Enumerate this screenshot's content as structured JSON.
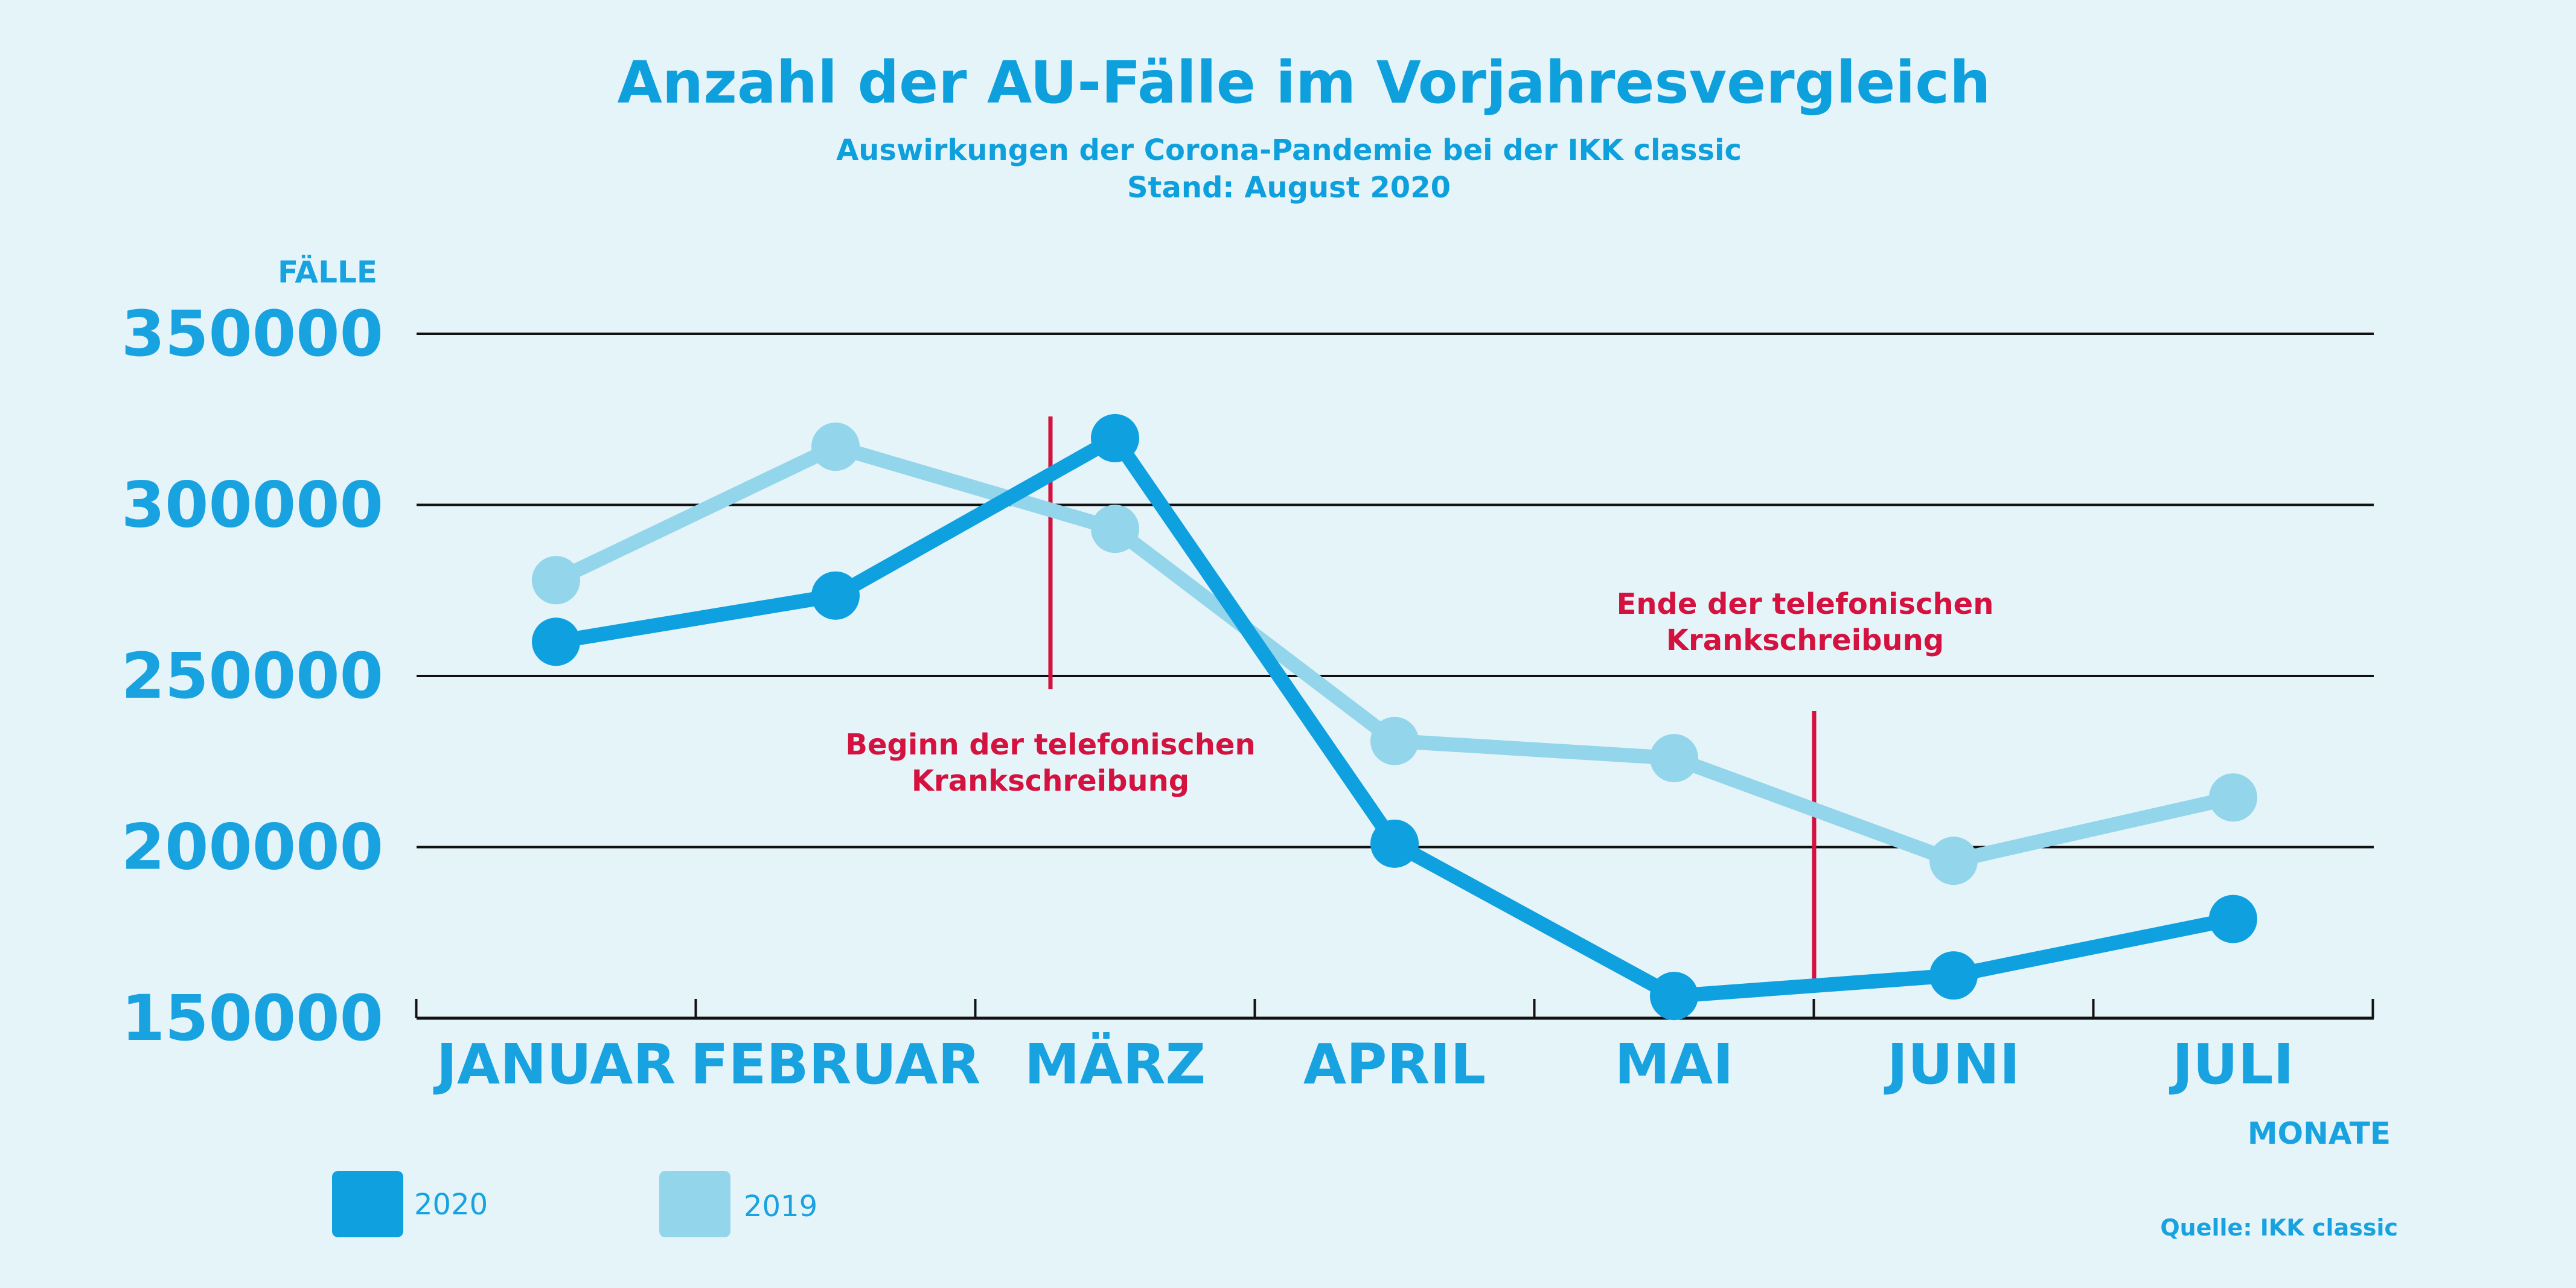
{
  "chart_data": {
    "type": "line",
    "title": "Anzahl der AU-Fälle im Vorjahresvergleich",
    "subtitle_lines": [
      "Auswirkungen der Corona-Pandemie bei der IKK classic",
      "Stand: August 2020"
    ],
    "ylabel": "FÄLLE",
    "xlabel": "MONATE",
    "categories": [
      "JANUAR",
      "FEBRUAR",
      "MÄRZ",
      "APRIL",
      "MAI",
      "JUNI",
      "JULI"
    ],
    "ylim": [
      150000,
      350000
    ],
    "yticks": [
      150000,
      200000,
      250000,
      300000,
      350000
    ],
    "grid": true,
    "legend_position": "bottom-left",
    "series": [
      {
        "name": "2020",
        "color": "#0fa0df",
        "values": [
          260000,
          273500,
          319500,
          201000,
          156500,
          162500,
          179000
        ]
      },
      {
        "name": "2019",
        "color": "#93d5eb",
        "values": [
          278000,
          317000,
          293000,
          231000,
          226000,
          196000,
          214500
        ]
      }
    ],
    "annotations": [
      {
        "lines": [
          "Beginn der telefonischen",
          "Krankschreibung"
        ],
        "color": "#d4123f",
        "marker_between": [
          "FEBRUAR",
          "MÄRZ"
        ]
      },
      {
        "lines": [
          "Ende der telefonischen",
          "Krankschreibung"
        ],
        "color": "#d4123f",
        "marker_between": [
          "MAI",
          "JUNI"
        ]
      }
    ],
    "source": "Quelle: IKK classic"
  }
}
